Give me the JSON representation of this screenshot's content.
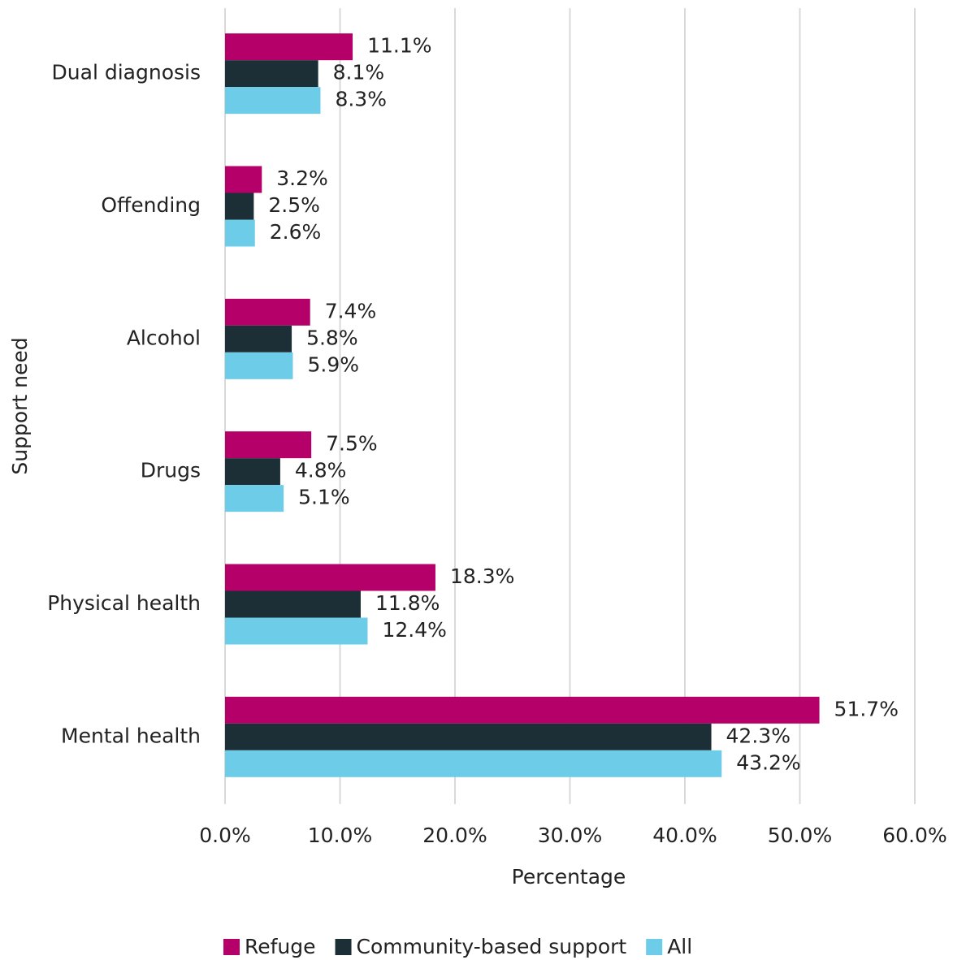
{
  "chart_data": {
    "type": "barh",
    "categories": [
      "Dual diagnosis",
      "Offending",
      "Alcohol",
      "Drugs",
      "Physical health",
      "Mental health"
    ],
    "series": [
      {
        "name": "Refuge",
        "color": "#b5006a",
        "values": [
          11.1,
          3.2,
          7.4,
          7.5,
          18.3,
          51.7
        ],
        "value_labels": [
          "11.1%",
          "3.2%",
          "7.4%",
          "7.5%",
          "18.3%",
          "51.7%"
        ]
      },
      {
        "name": "Community-based support",
        "color": "#1c2e36",
        "values": [
          8.1,
          2.5,
          5.8,
          4.8,
          11.8,
          42.3
        ],
        "value_labels": [
          "8.1%",
          "2.5%",
          "5.8%",
          "4.8%",
          "11.8%",
          "42.3%"
        ]
      },
      {
        "name": "All",
        "color": "#6dcde8",
        "values": [
          8.3,
          2.6,
          5.9,
          5.1,
          12.4,
          43.2
        ],
        "value_labels": [
          "8.3%",
          "2.6%",
          "5.9%",
          "5.1%",
          "12.4%",
          "43.2%"
        ]
      }
    ],
    "xlabel": "Percentage",
    "ylabel": "Support need",
    "xlim": [
      0,
      60
    ],
    "xticks": [
      {
        "value": 0,
        "label": "0.0%"
      },
      {
        "value": 10,
        "label": "10.0%"
      },
      {
        "value": 20,
        "label": "20.0%"
      },
      {
        "value": 30,
        "label": "30.0%"
      },
      {
        "value": 40,
        "label": "40.0%"
      },
      {
        "value": 50,
        "label": "50.0%"
      },
      {
        "value": 60,
        "label": "60.0%"
      }
    ],
    "grid": true,
    "legend": "bottom"
  }
}
